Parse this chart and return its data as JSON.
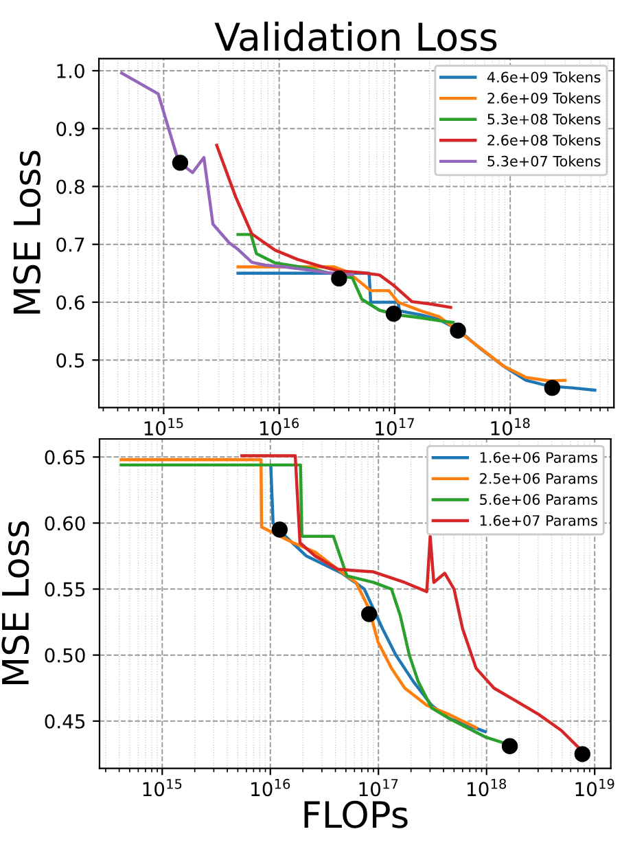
{
  "chart_data": [
    {
      "type": "line",
      "title": "Validation Loss",
      "ylabel": "MSE Loss",
      "log": "x",
      "grid": true,
      "legend": "top right",
      "marker": "none",
      "line_style": "solid",
      "xlim": [
        275000000000000.0,
        7.9e+18
      ],
      "ylim": [
        0.418,
        1.021
      ],
      "xticks": [
        {
          "value": 1000000000000000.0,
          "label": "10$^{15}$"
        },
        {
          "value": 1e+16,
          "label": "10$^{16}$"
        },
        {
          "value": 1e+17,
          "label": "10$^{17}$"
        },
        {
          "value": 1e+18,
          "label": "10$^{18}$"
        }
      ],
      "yticks": [
        0.5,
        0.6,
        0.7,
        0.8,
        0.9,
        {
          "value": 1.0,
          "label": "1.0"
        }
      ],
      "series": [
        {
          "name": "4.6e+09 Tokens",
          "color": "#1f77b4",
          "x": [
            4400000000000000.0,
            3e+16,
            6e+16,
            6.2e+16,
            1.07e+17,
            1.1e+17,
            1.69e+17,
            2.43e+17,
            3.5e+17,
            5.5e+17,
            8.7e+17,
            1.37e+18,
            2.17e+18,
            3.42e+18,
            5.4e+18
          ],
          "values": [
            0.65,
            0.65,
            0.65,
            0.6,
            0.6,
            0.585,
            0.578,
            0.57,
            0.553,
            0.52,
            0.49,
            0.465,
            0.455,
            0.452,
            0.448
          ]
        },
        {
          "name": "2.6e+09 Tokens",
          "color": "#ff7f0e",
          "x": [
            4400000000000000.0,
            2.99e+16,
            3.93e+16,
            6.2e+16,
            8.9e+16,
            1.07e+17,
            1.69e+17,
            2.43e+17,
            3.5e+17,
            5.5e+17,
            8.7e+17,
            1.37e+18,
            2.17e+18,
            2.98e+18
          ],
          "values": [
            0.661,
            0.661,
            0.652,
            0.62,
            0.62,
            0.6,
            0.585,
            0.575,
            0.551,
            0.521,
            0.49,
            0.47,
            0.464,
            0.465
          ]
        },
        {
          "name": "5.3e+08 Tokens",
          "color": "#2ca02c",
          "x": [
            4400000000000000.0,
            5700000000000000.0,
            6350000000000000.0,
            9200000000000000.0,
            1.9e+16,
            3.3e+16,
            4.3e+16,
            5.2e+16,
            7.4e+16,
            1.07e+17,
            1.69e+17,
            2.43e+17,
            3.2e+17
          ],
          "values": [
            0.717,
            0.717,
            0.684,
            0.668,
            0.658,
            0.646,
            0.642,
            0.605,
            0.586,
            0.578,
            0.573,
            0.568,
            0.565
          ]
        },
        {
          "name": "2.6e+08 Tokens",
          "color": "#d62728",
          "x": [
            2880000000000000.0,
            4200000000000000.0,
            5800000000000000.0,
            9200000000000000.0,
            1.44e+16,
            2.28e+16,
            3.28e+16,
            5.2e+16,
            7.4e+16,
            9.8e+16,
            1.41e+17,
            2.03e+17,
            3.05e+17
          ],
          "values": [
            0.871,
            0.782,
            0.718,
            0.69,
            0.674,
            0.662,
            0.654,
            0.651,
            0.647,
            0.629,
            0.601,
            0.597,
            0.591
          ]
        },
        {
          "name": "5.3e+07 Tokens",
          "color": "#9467bd",
          "x": [
            433000000000000.0,
            897000000000000.0,
            1350000000000000.0,
            1780000000000000.0,
            2230000000000000.0,
            2670000000000000.0,
            3680000000000000.0,
            4420000000000000.0,
            5800000000000000.0,
            7600000000000000.0,
            1.1e+16,
            1.9e+16,
            3.3e+16,
            4.3e+16
          ],
          "values": [
            0.996,
            0.96,
            0.842,
            0.824,
            0.85,
            0.735,
            0.703,
            0.691,
            0.669,
            0.664,
            0.661,
            0.655,
            0.648,
            0.648
          ]
        },
        {
          "type": "scatter",
          "marker": "circle",
          "color": "#000000",
          "x": [
            1390000000000000.0,
            3.3e+16,
            9.8e+16,
            3.53e+17,
            2.31e+18
          ],
          "values": [
            0.841,
            0.641,
            0.58,
            0.551,
            0.452
          ]
        }
      ]
    },
    {
      "type": "line",
      "xlabel": "FLOPs",
      "ylabel": "MSE Loss",
      "log": "x",
      "grid": true,
      "legend": "top right",
      "marker": "none",
      "line_style": "solid",
      "xlim": [
        263000000000000.0,
        1.41e+19
      ],
      "ylim": [
        0.4142,
        0.6637
      ],
      "xticks": [
        {
          "value": 1000000000000000.0,
          "label": "10$^{15}$"
        },
        {
          "value": 1e+16,
          "label": "10$^{16}$"
        },
        {
          "value": 1e+17,
          "label": "10$^{17}$"
        },
        {
          "value": 1e+18,
          "label": "10$^{18}$"
        },
        {
          "value": 1e+19,
          "label": "10$^{19}$"
        }
      ],
      "yticks": [
        0.45,
        {
          "value": 0.5,
          "label": "0.50"
        },
        0.55,
        {
          "value": 0.6,
          "label": "0.60"
        },
        0.65
      ],
      "series": [
        {
          "name": "1.6e+06 Params",
          "color": "#1f77b4",
          "x": [
            1.01e+16,
            1.06e+16,
            1.22e+16,
            2.16e+16,
            4.6e+16,
            7.4e+16,
            1.09e+17,
            1.45e+17,
            2.1e+17,
            3.1e+17,
            4.5e+17,
            9.7e+17
          ],
          "values": [
            0.643,
            0.6,
            0.594,
            0.575,
            0.562,
            0.55,
            0.52,
            0.5,
            0.48,
            0.462,
            0.452,
            0.442
          ]
        },
        {
          "name": "2.5e+06 Params",
          "color": "#ff7f0e",
          "x": [
            417000000000000.0,
            8200000000000000.0,
            8300000000000000.0,
            1.63e+16,
            2.6e+16,
            4.2e+16,
            6.2e+16,
            8.2e+16,
            9.9e+16,
            1.32e+17,
            1.75e+17,
            2.8e+17,
            4.5e+17,
            8e+17
          ],
          "values": [
            0.648,
            0.648,
            0.597,
            0.585,
            0.578,
            0.565,
            0.555,
            0.535,
            0.51,
            0.49,
            0.475,
            0.462,
            0.455,
            0.445
          ]
        },
        {
          "name": "5.6e+06 Params",
          "color": "#2ca02c",
          "x": [
            417000000000000.0,
            1.9e+16,
            1.96e+16,
            3.83e+16,
            5.1e+16,
            9e+16,
            1.32e+17,
            1.59e+17,
            1.93e+17,
            2.33e+17,
            3.1e+17,
            4.5e+17,
            9.7e+17,
            1.64e+18
          ],
          "values": [
            0.644,
            0.644,
            0.59,
            0.59,
            0.56,
            0.555,
            0.55,
            0.53,
            0.5,
            0.48,
            0.46,
            0.452,
            0.438,
            0.432
          ]
        },
        {
          "name": "1.6e+07 Params",
          "color": "#d62728",
          "x": [
            5450000000000000.0,
            1.7e+16,
            1.88e+16,
            2.6e+16,
            4.2e+16,
            9e+16,
            1.75e+17,
            2.8e+17,
            3.01e+17,
            3.25e+17,
            4.1e+17,
            5e+17,
            6e+17,
            8e+17,
            1.17e+18,
            1.89e+18,
            3.04e+18,
            4.9e+18,
            7.5e+18
          ],
          "values": [
            0.651,
            0.651,
            0.585,
            0.575,
            0.565,
            0.563,
            0.555,
            0.548,
            0.59,
            0.555,
            0.562,
            0.55,
            0.52,
            0.49,
            0.475,
            0.465,
            0.455,
            0.443,
            0.428
          ]
        },
        {
          "type": "scatter",
          "marker": "circle",
          "color": "#000000",
          "x": [
            1.22e+16,
            8.2e+16,
            1.64e+18,
            7.7e+18
          ],
          "values": [
            0.595,
            0.531,
            0.431,
            0.425
          ]
        }
      ]
    }
  ]
}
